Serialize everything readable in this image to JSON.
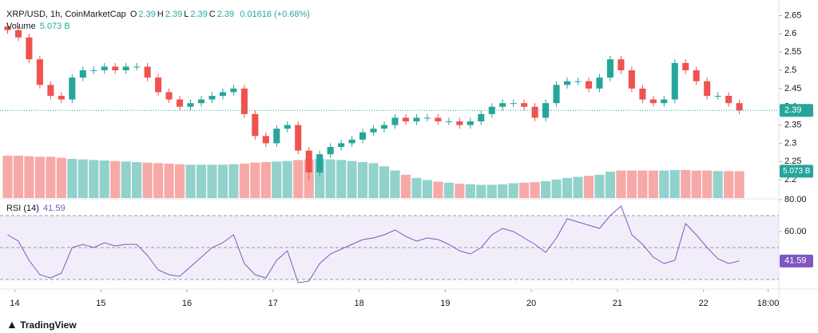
{
  "chart_data": {
    "type": "candlestick",
    "title": "XRP/USD, 1h, CoinMarketCap",
    "ohlc_legend": [
      {
        "label": "O",
        "value": 2.39
      },
      {
        "label": "H",
        "value": 2.39
      },
      {
        "label": "L",
        "value": 2.39
      },
      {
        "label": "C",
        "value": 2.39
      }
    ],
    "change": "0.01616 (+0.68%)",
    "x": [
      -2,
      1,
      4,
      7,
      10,
      13,
      16,
      19,
      22,
      25,
      28,
      31,
      34,
      37,
      40,
      43,
      46,
      49,
      52,
      55,
      58,
      61,
      64,
      67,
      70,
      73,
      76,
      79,
      82,
      85,
      88,
      91,
      94,
      97,
      100,
      103,
      106,
      109,
      112,
      115,
      118,
      121,
      124,
      127,
      130,
      133,
      136,
      139,
      142,
      145,
      148,
      151,
      154,
      157,
      160,
      163,
      166,
      169,
      172,
      175,
      178,
      181,
      184,
      187,
      190,
      193,
      196,
      199,
      202
    ],
    "xlim": [
      -3,
      213
    ],
    "xticks": [
      {
        "value": 0,
        "label": "14"
      },
      {
        "value": 24,
        "label": "15"
      },
      {
        "value": 48,
        "label": "16"
      },
      {
        "value": 72,
        "label": "17"
      },
      {
        "value": 96,
        "label": "18"
      },
      {
        "value": 120,
        "label": "19"
      },
      {
        "value": 144,
        "label": "20"
      },
      {
        "value": 168,
        "label": "21"
      },
      {
        "value": 192,
        "label": "22"
      },
      {
        "value": 210,
        "label": "18:00"
      }
    ],
    "open": [
      2.62,
      2.61,
      2.59,
      2.53,
      2.46,
      2.43,
      2.42,
      2.48,
      2.5,
      2.5,
      2.51,
      2.5,
      2.51,
      2.51,
      2.48,
      2.44,
      2.42,
      2.4,
      2.41,
      2.42,
      2.43,
      2.44,
      2.45,
      2.38,
      2.32,
      2.3,
      2.34,
      2.35,
      2.28,
      2.22,
      2.27,
      2.29,
      2.3,
      2.31,
      2.33,
      2.34,
      2.35,
      2.37,
      2.36,
      2.37,
      2.37,
      2.36,
      2.36,
      2.35,
      2.36,
      2.38,
      2.4,
      2.41,
      2.41,
      2.4,
      2.37,
      2.41,
      2.46,
      2.47,
      2.47,
      2.45,
      2.48,
      2.53,
      2.5,
      2.45,
      2.42,
      2.41,
      2.42,
      2.52,
      2.5,
      2.47,
      2.43,
      2.43,
      2.41
    ],
    "high": [
      2.63,
      2.62,
      2.6,
      2.54,
      2.47,
      2.44,
      2.49,
      2.51,
      2.51,
      2.52,
      2.52,
      2.52,
      2.52,
      2.52,
      2.49,
      2.45,
      2.43,
      2.42,
      2.43,
      2.44,
      2.45,
      2.46,
      2.46,
      2.39,
      2.33,
      2.35,
      2.36,
      2.36,
      2.29,
      2.28,
      2.3,
      2.31,
      2.32,
      2.34,
      2.35,
      2.36,
      2.38,
      2.38,
      2.38,
      2.38,
      2.38,
      2.37,
      2.37,
      2.37,
      2.39,
      2.41,
      2.42,
      2.42,
      2.42,
      2.41,
      2.42,
      2.47,
      2.48,
      2.48,
      2.48,
      2.49,
      2.54,
      2.54,
      2.51,
      2.46,
      2.43,
      2.43,
      2.53,
      2.53,
      2.51,
      2.48,
      2.44,
      2.44,
      2.42
    ],
    "low": [
      2.6,
      2.58,
      2.52,
      2.45,
      2.42,
      2.41,
      2.41,
      2.47,
      2.49,
      2.49,
      2.49,
      2.49,
      2.5,
      2.47,
      2.43,
      2.41,
      2.39,
      2.39,
      2.4,
      2.41,
      2.42,
      2.43,
      2.37,
      2.31,
      2.29,
      2.29,
      2.33,
      2.27,
      2.2,
      2.21,
      2.26,
      2.28,
      2.29,
      2.3,
      2.32,
      2.33,
      2.34,
      2.35,
      2.35,
      2.36,
      2.35,
      2.35,
      2.34,
      2.34,
      2.35,
      2.37,
      2.39,
      2.4,
      2.39,
      2.36,
      2.36,
      2.4,
      2.45,
      2.46,
      2.44,
      2.44,
      2.47,
      2.49,
      2.44,
      2.41,
      2.4,
      2.4,
      2.41,
      2.49,
      2.46,
      2.42,
      2.42,
      2.4,
      2.38
    ],
    "close": [
      2.61,
      2.59,
      2.53,
      2.46,
      2.43,
      2.42,
      2.48,
      2.5,
      2.5,
      2.51,
      2.5,
      2.51,
      2.51,
      2.48,
      2.44,
      2.42,
      2.4,
      2.41,
      2.42,
      2.43,
      2.44,
      2.45,
      2.38,
      2.32,
      2.3,
      2.34,
      2.35,
      2.28,
      2.22,
      2.27,
      2.29,
      2.3,
      2.31,
      2.33,
      2.34,
      2.35,
      2.37,
      2.36,
      2.37,
      2.37,
      2.36,
      2.36,
      2.35,
      2.36,
      2.38,
      2.4,
      2.41,
      2.41,
      2.4,
      2.37,
      2.41,
      2.46,
      2.47,
      2.47,
      2.45,
      2.48,
      2.53,
      2.5,
      2.45,
      2.42,
      2.41,
      2.42,
      2.52,
      2.5,
      2.47,
      2.43,
      2.43,
      2.41,
      2.39
    ],
    "up_color": "#26a69a",
    "down_color": "#ef5350",
    "ylim": [
      2.15,
      2.675
    ],
    "yticks": [
      2.2,
      2.25,
      2.3,
      2.35,
      2.4,
      2.45,
      2.5,
      2.55,
      2.6,
      2.65
    ],
    "grid": false,
    "volume": {
      "name": "Volume",
      "last_label": "5.073 B",
      "values": [
        8.0,
        8.0,
        7.9,
        7.8,
        7.8,
        7.6,
        7.4,
        7.3,
        7.2,
        7.1,
        7.0,
        6.9,
        6.8,
        6.7,
        6.6,
        6.5,
        6.4,
        6.3,
        6.3,
        6.3,
        6.3,
        6.4,
        6.5,
        6.7,
        6.8,
        6.9,
        7.0,
        7.2,
        7.3,
        7.4,
        7.3,
        7.2,
        7.0,
        6.8,
        6.6,
        6.0,
        5.2,
        4.4,
        3.8,
        3.4,
        3.1,
        2.9,
        2.7,
        2.6,
        2.5,
        2.5,
        2.6,
        2.8,
        2.9,
        3.0,
        3.2,
        3.5,
        3.8,
        4.0,
        4.2,
        4.4,
        5.0,
        5.2,
        5.2,
        5.2,
        5.2,
        5.2,
        5.3,
        5.3,
        5.2,
        5.2,
        5.1,
        5.1,
        5.073
      ]
    },
    "rsi": {
      "name": "RSI (14)",
      "color": "#7e57c2",
      "ylim": [
        25,
        80
      ],
      "yticks": [
        {
          "value": 60,
          "label": "60.00"
        },
        {
          "value": 80,
          "label": "80.00"
        }
      ],
      "levels": [
        70,
        50,
        30
      ],
      "values": [
        58,
        54,
        42,
        33,
        31,
        34,
        50,
        52,
        50,
        53,
        51,
        52,
        52,
        45,
        36,
        33,
        32,
        38,
        44,
        50,
        53,
        58,
        40,
        33,
        31,
        42,
        48,
        28,
        29,
        40,
        46,
        49,
        52,
        55,
        56,
        58,
        61,
        57,
        54,
        56,
        55,
        52,
        48,
        46,
        50,
        58,
        62,
        60,
        56,
        52,
        47,
        56,
        68,
        66,
        64,
        62,
        70,
        76,
        58,
        52,
        44,
        40,
        42,
        65,
        58,
        50,
        43,
        40,
        41.59
      ]
    },
    "brand": "TradingView"
  }
}
